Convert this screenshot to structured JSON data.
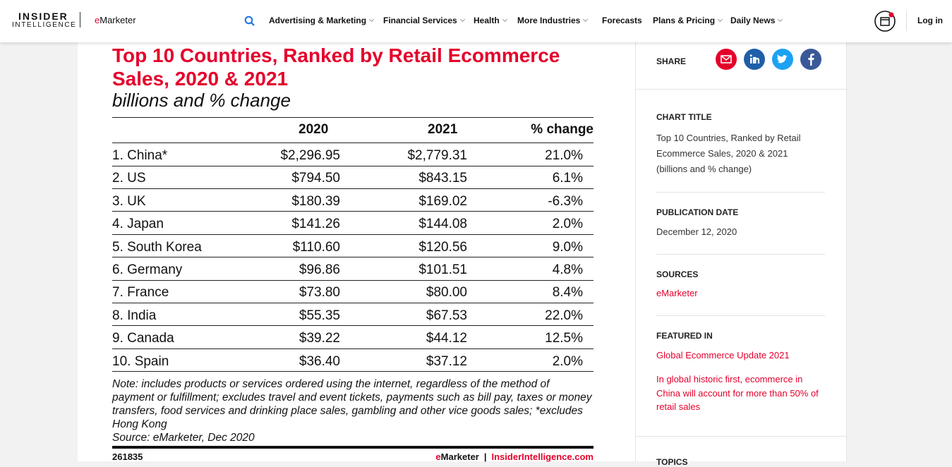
{
  "nav": {
    "logo_top": "INSIDER",
    "logo_bottom": "INTELLIGENCE",
    "brand": "eMarketer",
    "items": [
      "Advertising & Marketing",
      "Financial Services",
      "Health",
      "More Industries",
      "Forecasts",
      "Plans & Pricing",
      "Daily News"
    ],
    "login": "Log in"
  },
  "chart": {
    "title": "Top 10 Countries, Ranked by Retail Ecommerce Sales, 2020 & 2021",
    "subtitle": "billions and % change",
    "columns": [
      "2020",
      "2021",
      "% change"
    ],
    "rows": [
      [
        "1. China*",
        "$2,296.95",
        "$2,779.31",
        "21.0%"
      ],
      [
        "2. US",
        "$794.50",
        "$843.15",
        "6.1%"
      ],
      [
        "3. UK",
        "$180.39",
        "$169.02",
        "-6.3%"
      ],
      [
        "4. Japan",
        "$141.26",
        "$144.08",
        "2.0%"
      ],
      [
        "5. South Korea",
        "$110.60",
        "$120.56",
        "9.0%"
      ],
      [
        "6. Germany",
        "$96.86",
        "$101.51",
        "4.8%"
      ],
      [
        "7. France",
        "$73.80",
        "$80.00",
        "8.4%"
      ],
      [
        "8. India",
        "$55.35",
        "$67.53",
        "22.0%"
      ],
      [
        "9. Canada",
        "$39.22",
        "$44.12",
        "12.5%"
      ],
      [
        "10. Spain",
        "$36.40",
        "$37.12",
        "2.0%"
      ]
    ],
    "note": "Note: includes products or services ordered using the internet, regardless of the method of payment or fulfillment; excludes travel and event tickets, payments such as bill pay, taxes or money transfers, food services and drinking place sales, gambling and other vice goods sales; *excludes Hong Kong",
    "source": "Source: eMarketer, Dec 2020",
    "chart_id": "261835",
    "footer_brand": "eMarketer",
    "footer_site": "InsiderIntelligence.com"
  },
  "sidebar": {
    "share": "SHARE",
    "chart_title_label": "CHART TITLE",
    "chart_title": "Top 10 Countries, Ranked by Retail Ecommerce Sales, 2020 & 2021 (billions and % change)",
    "pub_label": "PUBLICATION DATE",
    "pub_date": "December 12, 2020",
    "sources_label": "SOURCES",
    "source": "eMarketer",
    "featured_label": "FEATURED IN",
    "featured": [
      "Global Ecommerce Update 2021",
      "In global historic first, ecommerce in China will account for more than 50% of retail sales"
    ],
    "topics_label": "TOPICS"
  }
}
